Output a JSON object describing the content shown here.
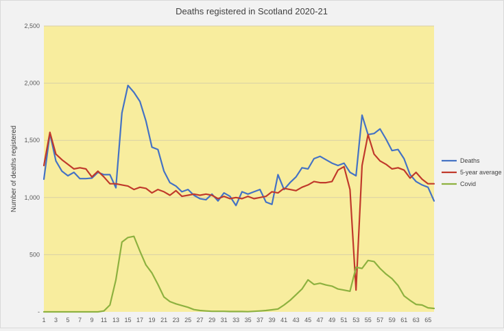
{
  "chart_data": {
    "type": "line",
    "title": "Deaths registered in Scotland 2020-21",
    "xlabel": "",
    "ylabel": "Number of deaths registered",
    "ylim": [
      0,
      2500
    ],
    "yticks": [
      0,
      500,
      1000,
      1500,
      2000,
      2500
    ],
    "ytick_labels": [
      "-",
      "500",
      "1,000",
      "1,500",
      "2,000",
      "2,500"
    ],
    "xlim": [
      1,
      66
    ],
    "xticks": [
      1,
      3,
      5,
      7,
      9,
      11,
      13,
      15,
      17,
      19,
      21,
      23,
      25,
      27,
      29,
      31,
      33,
      35,
      37,
      39,
      41,
      43,
      45,
      47,
      49,
      51,
      53,
      55,
      57,
      59,
      61,
      63,
      65
    ],
    "grid": true,
    "legend": "right",
    "x": [
      1,
      2,
      3,
      4,
      5,
      6,
      7,
      8,
      9,
      10,
      11,
      12,
      13,
      14,
      15,
      16,
      17,
      18,
      19,
      20,
      21,
      22,
      23,
      24,
      25,
      26,
      27,
      28,
      29,
      30,
      31,
      32,
      33,
      34,
      35,
      36,
      37,
      38,
      39,
      40,
      41,
      42,
      43,
      44,
      45,
      46,
      47,
      48,
      49,
      50,
      51,
      52,
      53,
      54,
      55,
      56,
      57,
      58,
      59,
      60,
      61,
      62,
      63,
      64,
      65,
      66
    ],
    "series": [
      {
        "name": "Deaths",
        "color": "#4472c4",
        "values": [
          1160,
          1560,
          1320,
          1230,
          1190,
          1220,
          1165,
          1165,
          1170,
          1220,
          1200,
          1200,
          1085,
          1740,
          1980,
          1920,
          1840,
          1670,
          1440,
          1420,
          1230,
          1130,
          1100,
          1050,
          1070,
          1020,
          990,
          980,
          1030,
          970,
          1040,
          1010,
          930,
          1050,
          1030,
          1050,
          1070,
          960,
          940,
          1200,
          1070,
          1130,
          1180,
          1260,
          1250,
          1340,
          1360,
          1330,
          1300,
          1280,
          1300,
          1220,
          1190,
          1720,
          1550,
          1560,
          1600,
          1510,
          1410,
          1420,
          1340,
          1200,
          1140,
          1110,
          1090,
          970
        ]
      },
      {
        "name": "5-year average",
        "color": "#c0392b",
        "values": [
          1280,
          1570,
          1380,
          1330,
          1290,
          1250,
          1260,
          1250,
          1180,
          1230,
          1180,
          1120,
          1120,
          1110,
          1100,
          1070,
          1090,
          1080,
          1040,
          1070,
          1050,
          1020,
          1060,
          1010,
          1020,
          1030,
          1020,
          1030,
          1020,
          990,
          1010,
          990,
          1000,
          990,
          1010,
          990,
          1000,
          1010,
          1050,
          1040,
          1080,
          1070,
          1060,
          1090,
          1110,
          1140,
          1130,
          1130,
          1140,
          1240,
          1270,
          1070,
          190,
          1280,
          1550,
          1380,
          1320,
          1290,
          1250,
          1260,
          1240,
          1170,
          1220,
          1160,
          1120,
          1120
        ]
      },
      {
        "name": "Covid",
        "color": "#8db13f",
        "values": [
          0,
          0,
          0,
          0,
          0,
          0,
          0,
          0,
          0,
          0,
          8,
          60,
          280,
          610,
          650,
          660,
          530,
          410,
          340,
          240,
          130,
          90,
          70,
          55,
          40,
          20,
          12,
          8,
          5,
          5,
          5,
          3,
          3,
          3,
          2,
          5,
          8,
          12,
          18,
          25,
          60,
          100,
          150,
          200,
          280,
          240,
          250,
          235,
          225,
          200,
          190,
          180,
          390,
          380,
          450,
          440,
          380,
          330,
          290,
          230,
          140,
          100,
          65,
          60,
          35,
          30
        ]
      }
    ]
  }
}
